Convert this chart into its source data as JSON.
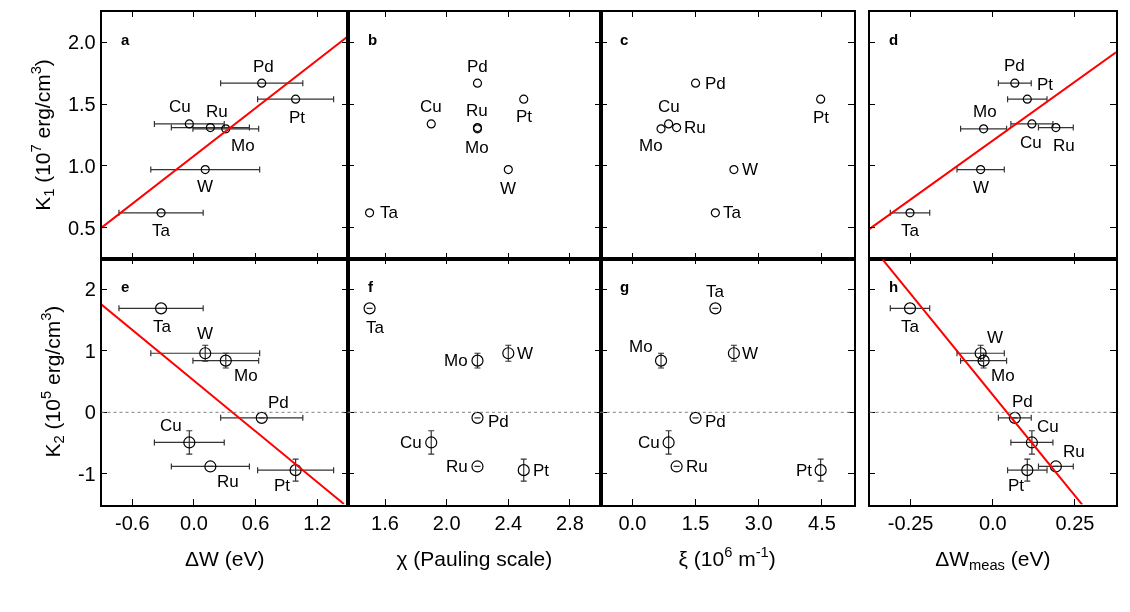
{
  "chart_data": [
    {
      "type": "scatter",
      "ylabel": "K$_{1}$ (10$^{7}$ erg/cm$^{3}$)",
      "xlim": [
        -0.9,
        1.5
      ],
      "ylim": [
        0.25,
        2.25
      ],
      "xticks": [
        -0.6,
        0,
        0.6,
        1.2
      ],
      "yticks": [
        0.5,
        {
          "value": 1,
          "label": "1.0"
        },
        1.5,
        {
          "value": 2,
          "label": "2.0"
        }
      ],
      "tick_labels": "y",
      "series": [
        {
          "marker": "circle",
          "color": "#000000",
          "x": [
            -0.32,
            0.11,
            0.31,
            -0.045,
            0.16,
            0.66,
            0.99
          ],
          "values": [
            0.62,
            0.97,
            1.3,
            1.34,
            1.31,
            1.67,
            1.54
          ],
          "xerrors": [
            0.41,
            0.53,
            0.32,
            0.34,
            0.38,
            0.4,
            0.37
          ]
        },
        {
          "type": "line",
          "marker": "none",
          "color": "#ff0000",
          "x": [
            -0.9,
            1.5
          ],
          "values": [
            0.5,
            2.05
          ]
        }
      ],
      "annotations": [
        "a",
        {
          "text": "Ta",
          "x": -0.32,
          "y": 0.62
        },
        {
          "text": "W",
          "x": 0.11,
          "y": 0.97
        },
        {
          "text": "Mo",
          "x": 0.31,
          "y": 1.3
        },
        {
          "text": "Cu",
          "x": -0.045,
          "y": 1.34
        },
        {
          "text": "Ru",
          "x": 0.16,
          "y": 1.31
        },
        {
          "text": "Pd",
          "x": 0.66,
          "y": 1.67
        },
        {
          "text": "Pt",
          "x": 0.99,
          "y": 1.54
        }
      ]
    },
    {
      "type": "scatter",
      "xlim": [
        1.36,
        3.0
      ],
      "ylim": [
        0.25,
        2.25
      ],
      "xticks": [
        1.6,
        2,
        2.4,
        2.8
      ],
      "yticks": [
        0.5,
        1,
        1.5,
        2
      ],
      "tick_labels": false,
      "series": [
        {
          "marker": "circle",
          "color": "#000000",
          "x": [
            1.5,
            2.4,
            2.2,
            1.9,
            2.2,
            2.2,
            2.5
          ],
          "values": [
            0.62,
            0.97,
            1.3,
            1.34,
            1.31,
            1.67,
            1.54
          ]
        }
      ],
      "annotations": [
        "b",
        {
          "text": "Ta",
          "x": 1.5,
          "y": 0.62
        },
        {
          "text": "W",
          "x": 2.4,
          "y": 0.97
        },
        {
          "text": "Mo",
          "x": 2.2,
          "y": 1.3
        },
        {
          "text": "Cu",
          "x": 1.9,
          "y": 1.34
        },
        {
          "text": "Ru",
          "x": 2.2,
          "y": 1.31
        },
        {
          "text": "Pd",
          "x": 2.2,
          "y": 1.67
        },
        {
          "text": "Pt",
          "x": 2.5,
          "y": 1.54
        }
      ]
    },
    {
      "type": "scatter",
      "xlim": [
        -0.75,
        5.25
      ],
      "ylim": [
        0.25,
        2.25
      ],
      "xticks": [
        0,
        1.5,
        3,
        4.5
      ],
      "yticks": [
        0.5,
        1,
        1.5,
        2
      ],
      "tick_labels": false,
      "series": [
        {
          "marker": "circle",
          "color": "#000000",
          "x": [
            1.97,
            2.41,
            0.68,
            0.86,
            1.05,
            1.5,
            4.47
          ],
          "values": [
            0.62,
            0.97,
            1.3,
            1.34,
            1.31,
            1.67,
            1.54
          ]
        }
      ],
      "annotations": [
        "c",
        {
          "text": "Ta",
          "x": 1.97,
          "y": 0.62
        },
        {
          "text": "W",
          "x": 2.41,
          "y": 0.97
        },
        {
          "text": "Mo",
          "x": 0.68,
          "y": 1.3
        },
        {
          "text": "Cu",
          "x": 0.86,
          "y": 1.34
        },
        {
          "text": "Ru",
          "x": 1.05,
          "y": 1.31
        },
        {
          "text": "Pd",
          "x": 1.5,
          "y": 1.67
        },
        {
          "text": "Pt",
          "x": 4.47,
          "y": 1.54
        }
      ]
    },
    {
      "type": "scatter",
      "xlim": [
        -0.375,
        0.375
      ],
      "ylim": [
        0.25,
        2.25
      ],
      "xticks": [
        -0.25,
        0,
        0.25
      ],
      "yticks": [
        0.5,
        1,
        1.5,
        2
      ],
      "tick_labels": false,
      "series": [
        {
          "marker": "circle",
          "color": "#000000",
          "x": [
            -0.252,
            -0.037,
            -0.028,
            0.119,
            0.192,
            0.067,
            0.105
          ],
          "values": [
            0.62,
            0.97,
            1.3,
            1.34,
            1.31,
            1.67,
            1.54
          ],
          "xerrors": [
            0.06,
            0.072,
            0.07,
            0.064,
            0.053,
            0.05,
            0.06
          ]
        },
        {
          "type": "line",
          "marker": "none",
          "color": "#ff0000",
          "x": [
            -0.375,
            0.375
          ],
          "values": [
            0.49,
            1.92
          ]
        }
      ],
      "annotations": [
        "d",
        {
          "text": "Ta",
          "x": -0.252,
          "y": 0.62
        },
        {
          "text": "W",
          "x": -0.037,
          "y": 0.97
        },
        {
          "text": "Mo",
          "x": -0.028,
          "y": 1.3
        },
        {
          "text": "Cu",
          "x": 0.119,
          "y": 1.34
        },
        {
          "text": "Ru",
          "x": 0.192,
          "y": 1.31
        },
        {
          "text": "Pd",
          "x": 0.067,
          "y": 1.67
        },
        {
          "text": "Pt",
          "x": 0.105,
          "y": 1.54
        }
      ]
    },
    {
      "type": "scatter",
      "xlabel": "ΔW (eV)",
      "ylabel": "K$_{2}$ (10$^{5}$ erg/cm$^{3}$)",
      "xlim": [
        -0.9,
        1.5
      ],
      "ylim": [
        -1.5,
        2.5
      ],
      "xticks": [
        -0.6,
        {
          "value": 0,
          "label": "0.0"
        },
        0.6,
        1.2
      ],
      "yticks": [
        -1,
        0,
        1,
        2
      ],
      "series": [
        {
          "marker": "circle",
          "color": "#000000",
          "x": [
            -0.32,
            0.11,
            0.31,
            -0.045,
            0.16,
            0.66,
            0.99
          ],
          "values": [
            1.69,
            0.96,
            0.84,
            -0.49,
            -0.88,
            -0.09,
            -0.94
          ],
          "xerrors": [
            0.41,
            0.53,
            0.32,
            0.34,
            0.38,
            0.4,
            0.37
          ],
          "errors": [
            null,
            0.13,
            0.12,
            0.19,
            null,
            null,
            0.18
          ]
        },
        {
          "type": "line",
          "marker": "none",
          "color": "#ff0000",
          "x": [
            -0.9,
            1.46
          ],
          "values": [
            1.75,
            -1.49
          ]
        }
      ],
      "ref_lines": [
        {
          "axis": "y",
          "value": 0,
          "line_style": "dotted",
          "color": "#808080"
        }
      ],
      "annotations": [
        "e",
        {
          "text": "Ta",
          "x": -0.32,
          "y": 1.69
        },
        {
          "text": "W",
          "x": 0.11,
          "y": 0.96
        },
        {
          "text": "Mo",
          "x": 0.31,
          "y": 0.84
        },
        {
          "text": "Cu",
          "x": -0.045,
          "y": -0.49
        },
        {
          "text": "Ru",
          "x": 0.16,
          "y": -0.88
        },
        {
          "text": "Pd",
          "x": 0.66,
          "y": -0.09
        },
        {
          "text": "Pt",
          "x": 0.99,
          "y": -0.94
        }
      ]
    },
    {
      "type": "scatter",
      "xlabel": "χ (Pauling scale)",
      "xlim": [
        1.36,
        3.0
      ],
      "ylim": [
        -1.5,
        2.5
      ],
      "xticks": [
        1.6,
        {
          "value": 2,
          "label": "2.0"
        },
        2.4,
        2.8
      ],
      "yticks": [
        -1,
        0,
        1,
        2
      ],
      "tick_labels": "x",
      "series": [
        {
          "marker": "circle",
          "color": "#000000",
          "x": [
            1.5,
            2.4,
            2.2,
            1.9,
            2.2,
            2.2,
            2.5
          ],
          "values": [
            1.69,
            0.96,
            0.84,
            -0.49,
            -0.88,
            -0.09,
            -0.94
          ],
          "errors": [
            null,
            0.13,
            0.12,
            0.19,
            null,
            null,
            0.18
          ]
        }
      ],
      "ref_lines": [
        {
          "axis": "y",
          "value": 0,
          "line_style": "dotted",
          "color": "#808080"
        }
      ],
      "annotations": [
        "f",
        {
          "text": "Ta",
          "x": 1.5,
          "y": 1.69
        },
        {
          "text": "W",
          "x": 2.4,
          "y": 0.96
        },
        {
          "text": "Mo",
          "x": 2.2,
          "y": 0.84
        },
        {
          "text": "Cu",
          "x": 1.9,
          "y": -0.49
        },
        {
          "text": "Ru",
          "x": 2.2,
          "y": -0.88
        },
        {
          "text": "Pd",
          "x": 2.2,
          "y": -0.09
        },
        {
          "text": "Pt",
          "x": 2.5,
          "y": -0.94
        }
      ]
    },
    {
      "type": "scatter",
      "xlabel": "ξ (10$^{6}$ m$^{-1}$)",
      "xlim": [
        -0.75,
        5.25
      ],
      "ylim": [
        -1.5,
        2.5
      ],
      "xticks": [
        {
          "value": 0,
          "label": "0.0"
        },
        1.5,
        {
          "value": 3,
          "label": "3.0"
        },
        4.5
      ],
      "yticks": [
        -1,
        0,
        1,
        2
      ],
      "tick_labels": "x",
      "series": [
        {
          "marker": "circle",
          "color": "#000000",
          "x": [
            1.97,
            2.41,
            0.68,
            0.86,
            1.05,
            1.5,
            4.47
          ],
          "values": [
            1.69,
            0.96,
            0.84,
            -0.49,
            -0.88,
            -0.09,
            -0.94
          ],
          "errors": [
            null,
            0.13,
            0.12,
            0.19,
            null,
            null,
            0.18
          ]
        }
      ],
      "ref_lines": [
        {
          "axis": "y",
          "value": 0,
          "line_style": "dotted",
          "color": "#808080"
        }
      ],
      "annotations": [
        "g",
        {
          "text": "Ta",
          "x": 1.97,
          "y": 1.69
        },
        {
          "text": "W",
          "x": 2.41,
          "y": 0.96
        },
        {
          "text": "Mo",
          "x": 0.68,
          "y": 0.84
        },
        {
          "text": "Cu",
          "x": 0.86,
          "y": -0.49
        },
        {
          "text": "Ru",
          "x": 1.05,
          "y": -0.88
        },
        {
          "text": "Pd",
          "x": 1.5,
          "y": -0.09
        },
        {
          "text": "Pt",
          "x": 4.47,
          "y": -0.94
        }
      ]
    },
    {
      "type": "scatter",
      "xlabel": "ΔW$_{meas}$ (eV)",
      "xlim": [
        -0.375,
        0.375
      ],
      "ylim": [
        -1.5,
        2.5
      ],
      "xticks": [
        -0.25,
        {
          "value": 0,
          "label": "0.0"
        },
        0.25
      ],
      "yticks": [
        -1,
        0,
        1,
        2
      ],
      "tick_labels": "x",
      "series": [
        {
          "marker": "circle",
          "color": "#000000",
          "x": [
            -0.252,
            -0.037,
            -0.028,
            0.119,
            0.192,
            0.067,
            0.105
          ],
          "values": [
            1.69,
            0.96,
            0.84,
            -0.49,
            -0.88,
            -0.09,
            -0.94
          ],
          "xerrors": [
            0.06,
            0.072,
            0.07,
            0.064,
            0.053,
            0.05,
            0.06
          ],
          "errors": [
            null,
            0.13,
            0.12,
            0.19,
            null,
            null,
            0.18
          ]
        },
        {
          "type": "line",
          "marker": "none",
          "color": "#ff0000",
          "x": [
            -0.335,
            0.272
          ],
          "values": [
            2.48,
            -1.5
          ]
        }
      ],
      "ref_lines": [
        {
          "axis": "y",
          "value": 0,
          "line_style": "dotted",
          "color": "#808080"
        }
      ],
      "annotations": [
        "h",
        {
          "text": "Ta",
          "x": -0.252,
          "y": 1.69
        },
        {
          "text": "W",
          "x": -0.037,
          "y": 0.96
        },
        {
          "text": "Mo",
          "x": -0.028,
          "y": 0.84
        },
        {
          "text": "Cu",
          "x": 0.119,
          "y": -0.49
        },
        {
          "text": "Ru",
          "x": 0.192,
          "y": -0.88
        },
        {
          "text": "Pd",
          "x": 0.067,
          "y": -0.09
        },
        {
          "text": "Pt",
          "x": 0.105,
          "y": -0.94
        }
      ]
    }
  ]
}
